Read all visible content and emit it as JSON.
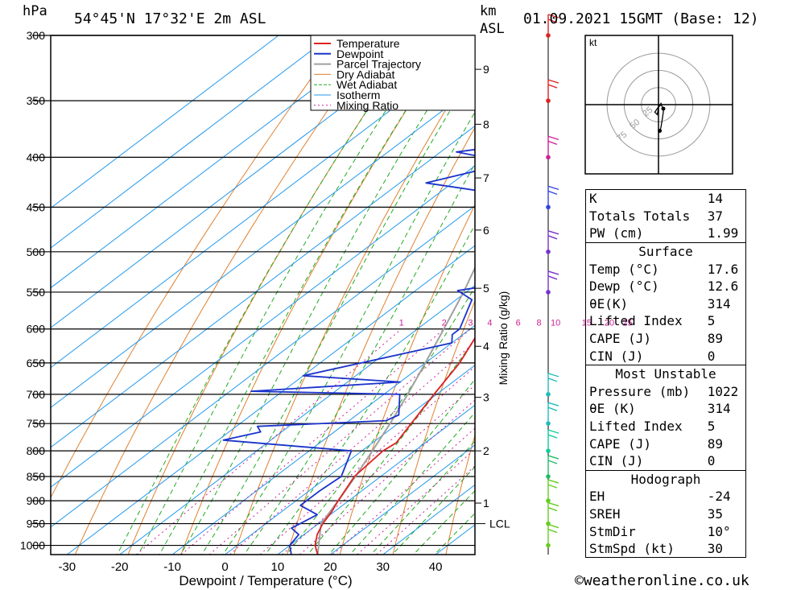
{
  "header": {
    "unit_hpa": "hPa",
    "location": "54°45'N 17°32'E 2m ASL",
    "unit_km": "km",
    "unit_asl": "ASL",
    "datetime": "01.09.2021 15GMT (Base: 12)"
  },
  "footer": {
    "copyright": "©weatheronline.co.uk"
  },
  "chart_data": {
    "type": "skew-t",
    "title": "54°45'N 17°32'E 2m ASL",
    "xlabel": "Dewpoint / Temperature (°C)",
    "ylabel_left": "hPa",
    "ylabel_right": "Mixing Ratio (g/kg)",
    "x_ticks": [
      "-30",
      "-20",
      "-10",
      "0",
      "10",
      "20",
      "30",
      "40"
    ],
    "pressure_levels": [
      300,
      350,
      400,
      450,
      500,
      550,
      600,
      650,
      700,
      750,
      800,
      850,
      900,
      950,
      1000
    ],
    "km_ticks": [
      {
        "p": 325,
        "label": "9"
      },
      {
        "p": 370,
        "label": "8"
      },
      {
        "p": 420,
        "label": "7"
      },
      {
        "p": 475,
        "label": "6"
      },
      {
        "p": 545,
        "label": "5"
      },
      {
        "p": 625,
        "label": "4"
      },
      {
        "p": 705,
        "label": "3"
      },
      {
        "p": 800,
        "label": "2"
      },
      {
        "p": 905,
        "label": "1"
      }
    ],
    "lcl": {
      "p": 950,
      "label": "LCL"
    },
    "mixing_ratio_labels": [
      "1",
      "2",
      "3",
      "4",
      "6",
      "8",
      "10",
      "15",
      "20",
      "25"
    ],
    "legend": [
      "Temperature",
      "Dewpoint",
      "Parcel Trajectory",
      "Dry Adiabat",
      "Wet Adiabat",
      "Isotherm",
      "Mixing Ratio"
    ],
    "colors": {
      "temperature": "#dd2222",
      "dewpoint": "#1a33cc",
      "parcel": "#a0a0a0",
      "dry": "#e08030",
      "wet": "#22aa22",
      "isotherm": "#2299ee",
      "mixing": "#cc2299"
    },
    "temperature": [
      {
        "p": 1022,
        "t": 17.6
      },
      {
        "p": 1000,
        "t": 14.8
      },
      {
        "p": 975,
        "t": 12.5
      },
      {
        "p": 950,
        "t": 10.8
      },
      {
        "p": 925,
        "t": 9.6
      },
      {
        "p": 900,
        "t": 8.0
      },
      {
        "p": 850,
        "t": 5.0
      },
      {
        "p": 800,
        "t": 4.0
      },
      {
        "p": 785,
        "t": 4.5
      },
      {
        "p": 750,
        "t": 2.5
      },
      {
        "p": 700,
        "t": -0.5
      },
      {
        "p": 650,
        "t": -3.5
      },
      {
        "p": 600,
        "t": -8.0
      },
      {
        "p": 550,
        "t": -12.5
      },
      {
        "p": 500,
        "t": -17.5
      },
      {
        "p": 450,
        "t": -23.5
      },
      {
        "p": 425,
        "t": -27.5
      },
      {
        "p": 400,
        "t": -31.0
      },
      {
        "p": 350,
        "t": -39.5
      },
      {
        "p": 300,
        "t": -50.0
      }
    ],
    "dewpoint": [
      {
        "p": 1022,
        "t": 12.6
      },
      {
        "p": 1000,
        "t": 10.0
      },
      {
        "p": 975,
        "t": 9.0
      },
      {
        "p": 960,
        "t": 6.0
      },
      {
        "p": 930,
        "t": 7.5
      },
      {
        "p": 910,
        "t": 2.0
      },
      {
        "p": 880,
        "t": 2.0
      },
      {
        "p": 850,
        "t": 2.5
      },
      {
        "p": 800,
        "t": -2.0
      },
      {
        "p": 780,
        "t": -29.0
      },
      {
        "p": 765,
        "t": -24.0
      },
      {
        "p": 755,
        "t": -26.0
      },
      {
        "p": 745,
        "t": -3.0
      },
      {
        "p": 735,
        "t": -2.0
      },
      {
        "p": 700,
        "t": -7.0
      },
      {
        "p": 695,
        "t": -36.0
      },
      {
        "p": 680,
        "t": -10.0
      },
      {
        "p": 670,
        "t": -30.0
      },
      {
        "p": 620,
        "t": -10.0
      },
      {
        "p": 608,
        "t": -12.0
      },
      {
        "p": 600,
        "t": -12.0
      },
      {
        "p": 560,
        "t": -17.0
      },
      {
        "p": 548,
        "t": -22.0
      },
      {
        "p": 540,
        "t": -16.0
      },
      {
        "p": 532,
        "t": -17.0
      },
      {
        "p": 520,
        "t": -20.0
      },
      {
        "p": 500,
        "t": -26.0
      },
      {
        "p": 450,
        "t": -37.0
      },
      {
        "p": 435,
        "t": -40.0
      },
      {
        "p": 425,
        "t": -55.0
      },
      {
        "p": 405,
        "t": -44.0
      },
      {
        "p": 395,
        "t": -57.0
      },
      {
        "p": 385,
        "t": -44.0
      },
      {
        "p": 378,
        "t": -41.0
      },
      {
        "p": 350,
        "t": -52.0
      },
      {
        "p": 340,
        "t": -56.0
      },
      {
        "p": 310,
        "t": -60.0
      },
      {
        "p": 300,
        "t": -64.0
      }
    ],
    "parcel": [
      {
        "p": 1022,
        "t": 17.6
      },
      {
        "p": 950,
        "t": 10.5
      },
      {
        "p": 900,
        "t": 8.0
      },
      {
        "p": 850,
        "t": 5.2
      },
      {
        "p": 800,
        "t": 2.0
      },
      {
        "p": 750,
        "t": -1.5
      },
      {
        "p": 700,
        "t": -5.5
      },
      {
        "p": 650,
        "t": -10.0
      },
      {
        "p": 600,
        "t": -15.0
      },
      {
        "p": 550,
        "t": -20.5
      },
      {
        "p": 500,
        "t": -27.0
      },
      {
        "p": 450,
        "t": -34.0
      },
      {
        "p": 400,
        "t": -42.0
      },
      {
        "p": 350,
        "t": -51.0
      },
      {
        "p": 310,
        "t": -59.0
      }
    ],
    "wind_barbs": [
      {
        "p": 300,
        "color": "#dd2222"
      },
      {
        "p": 350,
        "color": "#dd2222"
      },
      {
        "p": 400,
        "color": "#cc2299"
      },
      {
        "p": 450,
        "color": "#3344dd"
      },
      {
        "p": 500,
        "color": "#7733cc"
      },
      {
        "p": 550,
        "color": "#7733cc"
      },
      {
        "p": 700,
        "color": "#22bbbb"
      },
      {
        "p": 750,
        "color": "#22bbbb"
      },
      {
        "p": 800,
        "color": "#11cc99"
      },
      {
        "p": 850,
        "color": "#22bb66"
      },
      {
        "p": 900,
        "color": "#66cc22"
      },
      {
        "p": 950,
        "color": "#66cc22"
      },
      {
        "p": 1000,
        "color": "#66cc22"
      }
    ],
    "hodograph": {
      "unit_label": "kt",
      "ring_labels": [
        "25",
        "50",
        "75"
      ],
      "points": [
        {
          "u": 2,
          "v": 0
        },
        {
          "u": 0,
          "v": -2
        },
        {
          "u": -1,
          "v": -8
        },
        {
          "u": -3,
          "v": -6
        },
        {
          "u": 2,
          "v": 1
        },
        {
          "u": 4,
          "v": -5
        },
        {
          "u": 3,
          "v": -12
        },
        {
          "u": 2,
          "v": -18
        },
        {
          "u": 1,
          "v": -22
        },
        {
          "u": 2,
          "v": -20
        },
        {
          "u": 1,
          "v": -21
        }
      ]
    }
  },
  "indices": {
    "basic": [
      {
        "label": "K",
        "value": "14"
      },
      {
        "label": "Totals Totals",
        "value": "37"
      },
      {
        "label": "PW (cm)",
        "value": "1.99"
      }
    ],
    "surface": {
      "title": "Surface",
      "rows": [
        {
          "label": "Temp (°C)",
          "value": "17.6"
        },
        {
          "label": "Dewp (°C)",
          "value": "12.6"
        },
        {
          "label": "θE(K)",
          "value": "314"
        },
        {
          "label": "Lifted Index",
          "value": "5"
        },
        {
          "label": "CAPE (J)",
          "value": "89"
        },
        {
          "label": "CIN (J)",
          "value": "0"
        }
      ]
    },
    "most_unstable": {
      "title": "Most Unstable",
      "rows": [
        {
          "label": "Pressure (mb)",
          "value": "1022"
        },
        {
          "label": "θE (K)",
          "value": "314"
        },
        {
          "label": "Lifted Index",
          "value": "5"
        },
        {
          "label": "CAPE (J)",
          "value": "89"
        },
        {
          "label": "CIN (J)",
          "value": "0"
        }
      ]
    },
    "hodograph": {
      "title": "Hodograph",
      "rows": [
        {
          "label": "EH",
          "value": "-24"
        },
        {
          "label": "SREH",
          "value": "35"
        },
        {
          "label": "StmDir",
          "value": "10°"
        },
        {
          "label": "StmSpd (kt)",
          "value": "30"
        }
      ]
    }
  }
}
